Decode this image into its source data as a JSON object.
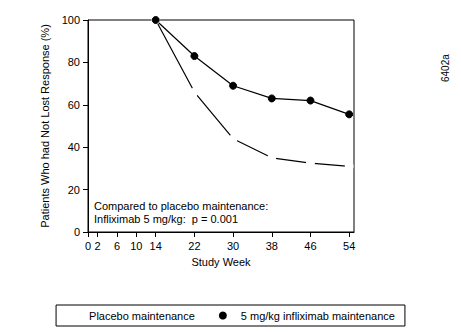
{
  "chart_data": {
    "type": "line",
    "x_label": "Study Week",
    "y_label": "Patients Who had Not Lost Response (%)",
    "xlim": [
      0,
      55
    ],
    "xticks": [
      0,
      2,
      6,
      10,
      14,
      22,
      30,
      38,
      46,
      54
    ],
    "ylim": [
      0,
      100
    ],
    "yticks": [
      0,
      20,
      40,
      60,
      80,
      100
    ],
    "grid": false,
    "legend": "bottom",
    "x": [
      14,
      22,
      30,
      38,
      46,
      54
    ],
    "series": [
      {
        "name": "Placebo maintenance",
        "color": "#000000",
        "marker": "emptyCircle",
        "values": [
          100,
          66,
          44,
          35,
          32.5,
          31
        ]
      },
      {
        "name": "5 mg/kg infliximab maintenance",
        "color": "#000000",
        "marker": "circle",
        "values": [
          100,
          83,
          69,
          63,
          62,
          55.5
        ]
      }
    ],
    "annotations": [
      "Compared to placebo maintenance:",
      "Infliximab 5 mg/kg:  p = 0.001",
      "6402a"
    ]
  }
}
